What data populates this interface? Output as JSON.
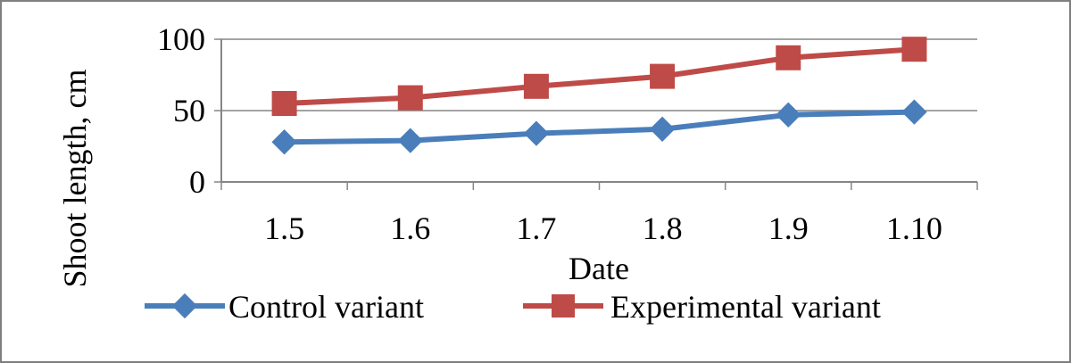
{
  "chart_data": {
    "type": "line",
    "title": "",
    "xlabel": "Date",
    "ylabel": "Shoot length, cm",
    "categories": [
      "1.5",
      "1.6",
      "1.7",
      "1.8",
      "1.9",
      "1.10"
    ],
    "ylim": [
      0,
      100
    ],
    "yticks": [
      0,
      50,
      100
    ],
    "grid": true,
    "legend_position": "bottom",
    "series": [
      {
        "name": "Control variant",
        "marker": "diamond",
        "color": "#4a7ebb",
        "values": [
          28,
          29,
          34,
          37,
          47,
          49
        ]
      },
      {
        "name": "Experimental variant",
        "marker": "square",
        "color": "#be4b48",
        "values": [
          55,
          59,
          67,
          74,
          87,
          93
        ]
      }
    ]
  }
}
